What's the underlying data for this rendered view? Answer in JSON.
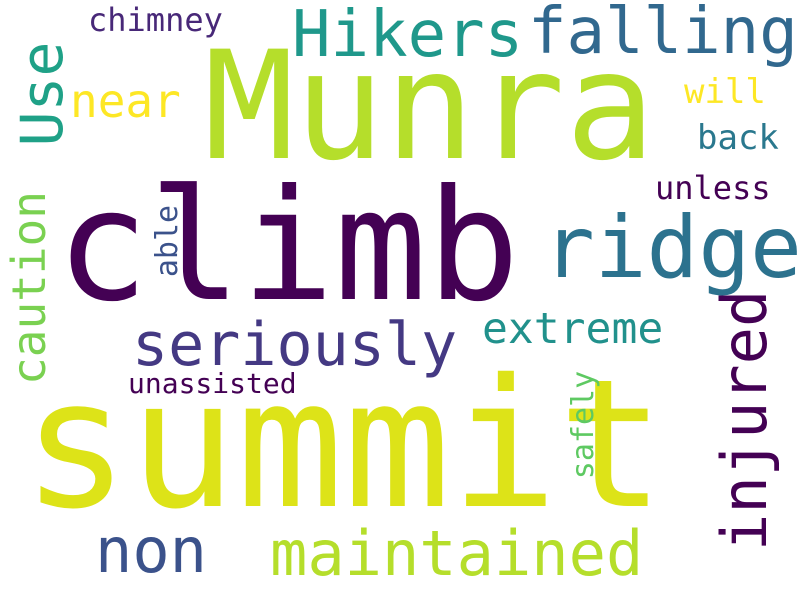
{
  "words": [
    {
      "key": "summit",
      "text": "summit",
      "color": "#dde318",
      "rotate": 0
    },
    {
      "key": "Munra",
      "text": "Munra",
      "color": "#b5de2b",
      "rotate": 0
    },
    {
      "key": "climb",
      "text": "climb",
      "color": "#440154",
      "rotate": 0
    },
    {
      "key": "ridge",
      "text": "ridge",
      "color": "#2c728e",
      "rotate": 0
    },
    {
      "key": "injured",
      "text": "injured",
      "color": "#440154",
      "rotate": -90
    },
    {
      "key": "maintained",
      "text": "maintained",
      "color": "#b5de2b",
      "rotate": 0
    },
    {
      "key": "falling",
      "text": "falling",
      "color": "#31688e",
      "rotate": 0
    },
    {
      "key": "Hikers",
      "text": "Hikers",
      "color": "#1f988b",
      "rotate": 0
    },
    {
      "key": "seriously",
      "text": "seriously",
      "color": "#443983",
      "rotate": 0
    },
    {
      "key": "non",
      "text": "non",
      "color": "#3b528b",
      "rotate": 0
    },
    {
      "key": "extreme",
      "text": "extreme",
      "color": "#21918c",
      "rotate": 0
    },
    {
      "key": "caution",
      "text": "caution",
      "color": "#7ad151",
      "rotate": -90
    },
    {
      "key": "Use",
      "text": "Use",
      "color": "#1fa187",
      "rotate": -90
    },
    {
      "key": "near",
      "text": "near",
      "color": "#fde725",
      "rotate": 0
    },
    {
      "key": "chimney",
      "text": "chimney",
      "color": "#482878",
      "rotate": 0
    },
    {
      "key": "unassisted",
      "text": "unassisted",
      "color": "#440154",
      "rotate": 0
    },
    {
      "key": "safely",
      "text": "safely",
      "color": "#5ec962",
      "rotate": -90
    },
    {
      "key": "able",
      "text": "able",
      "color": "#3b528b",
      "rotate": -90
    },
    {
      "key": "unless",
      "text": "unless",
      "color": "#440154",
      "rotate": 0
    },
    {
      "key": "back",
      "text": "back",
      "color": "#2a788e",
      "rotate": 0
    },
    {
      "key": "will",
      "text": "will",
      "color": "#fde725",
      "rotate": 0
    }
  ]
}
